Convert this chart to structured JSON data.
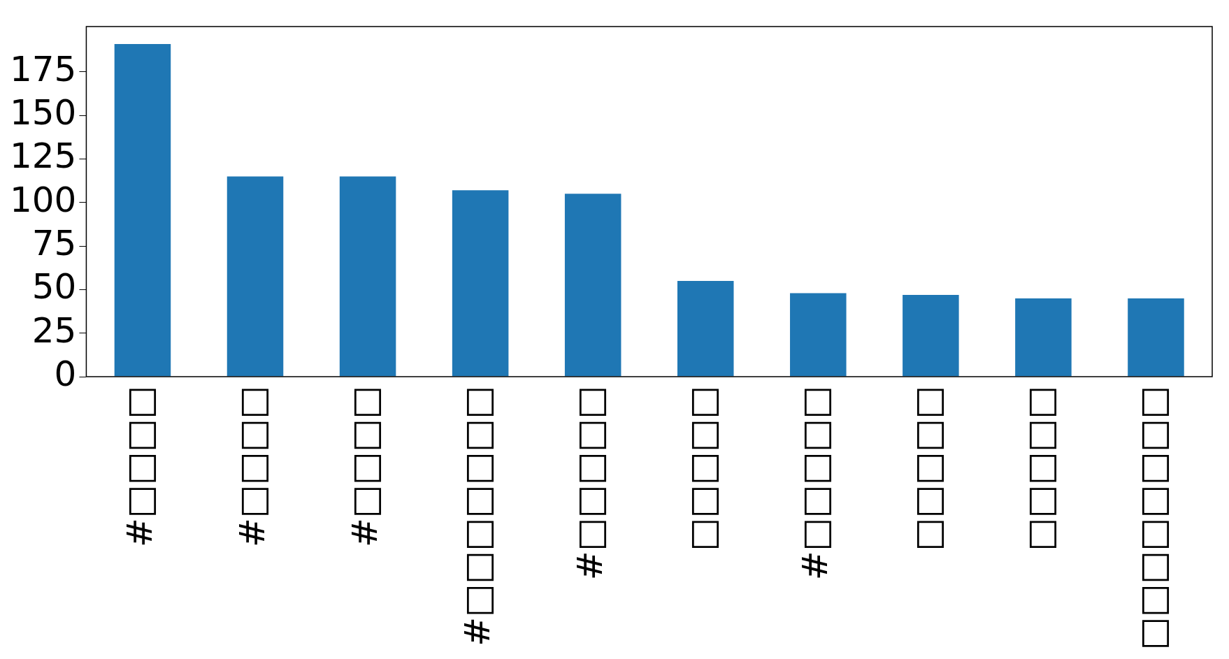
{
  "chart_data": {
    "type": "bar",
    "categories": [
      "#□□□□",
      "#□□□□",
      "#□□□□",
      "#□□□□□□□",
      "#□□□□□",
      "□□□□□",
      "#□□□□□",
      "□□□□□",
      "□□□□□",
      "□□□□□□□□"
    ],
    "values": [
      191,
      115,
      115,
      107,
      105,
      55,
      48,
      47,
      45,
      45
    ],
    "color": "#1f77b4",
    "ylim": [
      0,
      201
    ],
    "yticks": [
      0,
      25,
      50,
      75,
      100,
      125,
      150,
      175
    ],
    "grid": false,
    "legend": false
  }
}
